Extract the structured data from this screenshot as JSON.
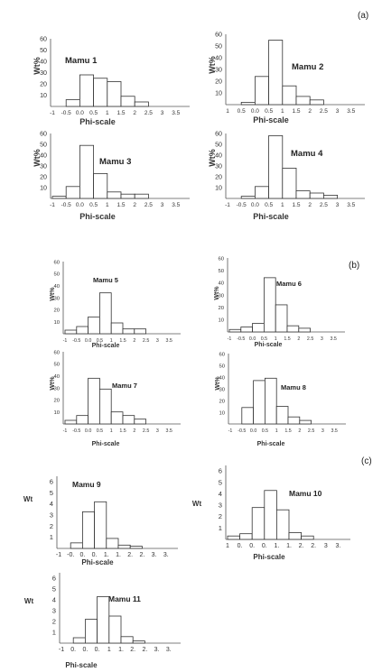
{
  "panel_labels": [
    "(a)",
    "(b)",
    "(c)"
  ],
  "chart_data": [
    {
      "type": "bar",
      "title": "Mamu 1",
      "xlabel": "Phi-scale",
      "ylabel": "Wt%",
      "x_tick_labels": [
        "-1",
        "-0.5",
        "0.0",
        "0.5",
        "1",
        "1.5",
        "2",
        "2.5",
        "3",
        "3.5"
      ],
      "y_tick_labels": [
        "10",
        "20",
        "30",
        "40",
        "50",
        "60"
      ],
      "ylim": [
        0,
        60
      ],
      "bins": [
        [
          -0.5,
          0
        ],
        [
          0,
          0.5
        ],
        [
          0.5,
          1
        ],
        [
          1,
          1.5
        ],
        [
          1.5,
          2
        ],
        [
          2,
          2.5
        ]
      ],
      "values": [
        6,
        28,
        25,
        22,
        9,
        4
      ]
    },
    {
      "type": "bar",
      "title": "Mamu 2",
      "xlabel": "Phi-scale",
      "ylabel": "Wt%",
      "x_tick_labels": [
        "1",
        "0.5",
        "0.0",
        "0.5",
        "1",
        "1.5",
        "2",
        "2.5",
        "3",
        "3.5"
      ],
      "y_tick_labels": [
        "10",
        "20",
        "30",
        "40",
        "50",
        "60"
      ],
      "ylim": [
        0,
        60
      ],
      "bins": [
        [
          -0.5,
          0
        ],
        [
          0,
          0.5
        ],
        [
          0.5,
          1
        ],
        [
          1,
          1.5
        ],
        [
          1.5,
          2
        ],
        [
          2,
          2.5
        ]
      ],
      "values": [
        2,
        24,
        55,
        16,
        7,
        4
      ]
    },
    {
      "type": "bar",
      "title": "Mamu 3",
      "xlabel": "Phi-scale",
      "ylabel": "Wt%",
      "x_tick_labels": [
        "-1",
        "-0.5",
        "0.0",
        "0.5",
        "1",
        "1.5",
        "2",
        "2.5",
        "3",
        "3.5"
      ],
      "y_tick_labels": [
        "10",
        "20",
        "30",
        "40",
        "50",
        "60"
      ],
      "ylim": [
        0,
        60
      ],
      "bins": [
        [
          -1,
          -0.5
        ],
        [
          -0.5,
          0
        ],
        [
          0,
          0.5
        ],
        [
          0.5,
          1
        ],
        [
          1,
          1.5
        ],
        [
          1.5,
          2
        ],
        [
          2,
          2.5
        ]
      ],
      "values": [
        2,
        11,
        49,
        23,
        6,
        4,
        4
      ]
    },
    {
      "type": "bar",
      "title": "Mamu 4",
      "xlabel": "Phi-scale",
      "ylabel": "Wt%",
      "x_tick_labels": [
        "-1",
        "-0.5",
        "0.0",
        "0.5",
        "1",
        "1.5",
        "2",
        "2.5",
        "3",
        "3.5"
      ],
      "y_tick_labels": [
        "10",
        "20",
        "30",
        "40",
        "50",
        "60"
      ],
      "ylim": [
        0,
        60
      ],
      "bins": [
        [
          -0.5,
          0
        ],
        [
          0,
          0.5
        ],
        [
          0.5,
          1
        ],
        [
          1,
          1.5
        ],
        [
          1.5,
          2
        ],
        [
          2,
          2.5
        ],
        [
          2.5,
          3
        ]
      ],
      "values": [
        2,
        11,
        58,
        28,
        7,
        5,
        3
      ]
    },
    {
      "type": "bar",
      "title": "Mamu 5",
      "xlabel": "Phi-scale",
      "ylabel": "Wt%",
      "x_tick_labels": [
        "-1",
        "-0.5",
        "0.0",
        "0.5",
        "1",
        "1.5",
        "2",
        "2.5",
        "3",
        "3.5"
      ],
      "y_tick_labels": [
        "10",
        "20",
        "30",
        "40",
        "50",
        "60"
      ],
      "ylim": [
        0,
        60
      ],
      "bins": [
        [
          -1,
          -0.5
        ],
        [
          -0.5,
          0
        ],
        [
          0,
          0.5
        ],
        [
          0.5,
          1
        ],
        [
          1,
          1.5
        ],
        [
          1.5,
          2
        ],
        [
          2,
          2.5
        ]
      ],
      "values": [
        3,
        6,
        14,
        34,
        9,
        4,
        4
      ]
    },
    {
      "type": "bar",
      "title": "Mamu 6",
      "xlabel": "Phi-scale",
      "ylabel": "Wt%",
      "x_tick_labels": [
        "-1",
        "-0.5",
        "0.0",
        "0.5",
        "1",
        "1.5",
        "2",
        "2.5",
        "3",
        "3.5"
      ],
      "y_tick_labels": [
        "10",
        "20",
        "30",
        "40",
        "50",
        "60"
      ],
      "ylim": [
        0,
        60
      ],
      "bins": [
        [
          -1,
          -0.5
        ],
        [
          -0.5,
          0
        ],
        [
          0,
          0.5
        ],
        [
          0.5,
          1
        ],
        [
          1,
          1.5
        ],
        [
          1.5,
          2
        ],
        [
          2,
          2.5
        ]
      ],
      "values": [
        2,
        4,
        7,
        44,
        22,
        5,
        3
      ]
    },
    {
      "type": "bar",
      "title": "Mamu 7",
      "xlabel": "Phi-scale",
      "ylabel": "Wt%",
      "x_tick_labels": [
        "-1",
        "-0.5",
        "0.0",
        "0.5",
        "1",
        "1.5",
        "2",
        "2.5",
        "3",
        "3.5"
      ],
      "y_tick_labels": [
        "10",
        "20",
        "30",
        "40",
        "50",
        "60"
      ],
      "ylim": [
        0,
        60
      ],
      "bins": [
        [
          -1,
          -0.5
        ],
        [
          -0.5,
          0
        ],
        [
          0,
          0.5
        ],
        [
          0.5,
          1
        ],
        [
          1,
          1.5
        ],
        [
          1.5,
          2
        ],
        [
          2,
          2.5
        ]
      ],
      "values": [
        3,
        7,
        38,
        29,
        10,
        7,
        4
      ]
    },
    {
      "type": "bar",
      "title": "Mamu 8",
      "xlabel": "Phi-scale",
      "ylabel": "Wt%",
      "x_tick_labels": [
        "-1",
        "-0.5",
        "0.0",
        "0.5",
        "1",
        "1.5",
        "2",
        "2.5",
        "3",
        "3.5"
      ],
      "y_tick_labels": [
        "10",
        "20",
        "30",
        "40",
        "50",
        "60"
      ],
      "ylim": [
        0,
        60
      ],
      "bins": [
        [
          -0.5,
          0
        ],
        [
          0,
          0.5
        ],
        [
          0.5,
          1
        ],
        [
          1,
          1.5
        ],
        [
          1.5,
          2
        ],
        [
          2,
          2.5
        ]
      ],
      "values": [
        14,
        37,
        39,
        15,
        6,
        3
      ]
    },
    {
      "type": "bar",
      "title": "Mamu 9",
      "xlabel": "Phi-scale",
      "ylabel": "Wt",
      "x_tick_labels": [
        "-1",
        "-0.",
        "0.",
        "0.",
        "1.",
        "1.",
        "2.",
        "2.",
        "3.",
        "3."
      ],
      "y_tick_labels": [
        "1",
        "2",
        "3",
        "4",
        "5",
        "6"
      ],
      "ylim": [
        0,
        6.5
      ],
      "bins": [
        [
          -0.5,
          0
        ],
        [
          0,
          0.5
        ],
        [
          0.5,
          1
        ],
        [
          1,
          1.5
        ],
        [
          1.5,
          2
        ],
        [
          2,
          2.5
        ]
      ],
      "values": [
        0.5,
        3.3,
        4.2,
        0.9,
        0.3,
        0.2
      ]
    },
    {
      "type": "bar",
      "title": "Mamu 10",
      "xlabel": "Phi-scale",
      "ylabel": "Wt",
      "x_tick_labels": [
        "1",
        "0.",
        "0.",
        "0.",
        "1.",
        "1.",
        "2.",
        "2.",
        "3",
        "3."
      ],
      "y_tick_labels": [
        "1",
        "2",
        "3",
        "4",
        "5",
        "6"
      ],
      "ylim": [
        0,
        6.5
      ],
      "bins": [
        [
          -1,
          -0.5
        ],
        [
          -0.5,
          0
        ],
        [
          0,
          0.5
        ],
        [
          0.5,
          1
        ],
        [
          1,
          1.5
        ],
        [
          1.5,
          2
        ],
        [
          2,
          2.5
        ]
      ],
      "values": [
        0.3,
        0.5,
        2.8,
        4.3,
        2.6,
        0.6,
        0.3
      ]
    },
    {
      "type": "bar",
      "title": "Mamu 11",
      "xlabel": "Phi-scale",
      "ylabel": "Wt",
      "x_tick_labels": [
        "-1",
        "0.",
        "0.",
        "0.",
        "1",
        "1.",
        "2.",
        "2.",
        "3.",
        "3."
      ],
      "y_tick_labels": [
        "1",
        "2",
        "3",
        "4",
        "5",
        "6"
      ],
      "ylim": [
        0,
        6.5
      ],
      "bins": [
        [
          -0.5,
          0
        ],
        [
          0,
          0.5
        ],
        [
          0.5,
          1
        ],
        [
          1,
          1.5
        ],
        [
          1.5,
          2
        ],
        [
          2,
          2.5
        ]
      ],
      "values": [
        0.5,
        2.2,
        4.3,
        2.5,
        0.6,
        0.2
      ]
    }
  ]
}
